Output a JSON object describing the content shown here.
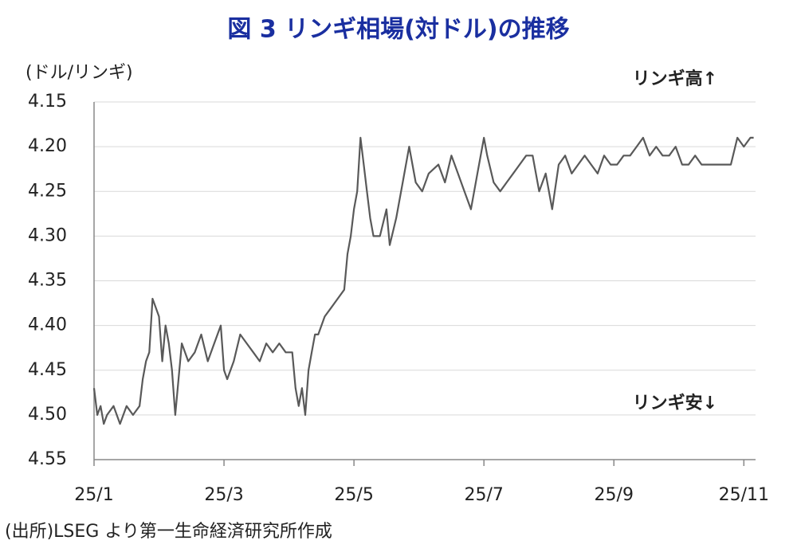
{
  "chart_data": {
    "type": "line",
    "title": "図 3  リンギ相場(対ドル)の推移",
    "y_label": "(ドル/リンギ)",
    "annotations": [
      "リンギ高↑",
      "リンギ安↓"
    ],
    "source": "(出所)LSEG より第一生命経済研究所作成",
    "xlim": [
      1,
      11.18
    ],
    "xticks": [
      {
        "value": 1,
        "label": "25/1"
      },
      {
        "value": 3,
        "label": "25/3"
      },
      {
        "value": 5,
        "label": "25/5"
      },
      {
        "value": 7,
        "label": "25/7"
      },
      {
        "value": 9,
        "label": "25/9"
      },
      {
        "value": 11,
        "label": "25/11"
      }
    ],
    "ylim": [
      4.55,
      4.15
    ],
    "yticks": [
      4.15,
      {
        "value": 4.2,
        "label": "4.20"
      },
      4.25,
      {
        "value": 4.3,
        "label": "4.30"
      },
      4.35,
      {
        "value": 4.4,
        "label": "4.40"
      },
      4.45,
      {
        "value": 4.5,
        "label": "4.50"
      },
      4.55
    ],
    "grid": true,
    "x": [
      1.0,
      1.05,
      1.1,
      1.15,
      1.2,
      1.3,
      1.4,
      1.5,
      1.6,
      1.7,
      1.75,
      1.8,
      1.85,
      1.9,
      1.95,
      2.0,
      2.05,
      2.1,
      2.15,
      2.2,
      2.25,
      2.3,
      2.35,
      2.45,
      2.55,
      2.65,
      2.75,
      2.85,
      2.95,
      3.0,
      3.05,
      3.15,
      3.25,
      3.35,
      3.45,
      3.55,
      3.65,
      3.75,
      3.85,
      3.95,
      4.05,
      4.1,
      4.15,
      4.2,
      4.25,
      4.3,
      4.35,
      4.4,
      4.45,
      4.55,
      4.65,
      4.75,
      4.85,
      4.9,
      4.95,
      5.0,
      5.05,
      5.1,
      5.15,
      5.2,
      5.25,
      5.3,
      5.4,
      5.5,
      5.55,
      5.65,
      5.75,
      5.85,
      5.95,
      6.05,
      6.15,
      6.3,
      6.4,
      6.5,
      6.6,
      6.7,
      6.8,
      6.9,
      7.0,
      7.05,
      7.15,
      7.25,
      7.35,
      7.45,
      7.55,
      7.65,
      7.75,
      7.85,
      7.95,
      8.05,
      8.15,
      8.25,
      8.35,
      8.45,
      8.55,
      8.65,
      8.75,
      8.85,
      8.95,
      9.05,
      9.15,
      9.25,
      9.35,
      9.45,
      9.55,
      9.65,
      9.75,
      9.85,
      9.95,
      10.05,
      10.15,
      10.25,
      10.35,
      10.5,
      10.65,
      10.8,
      10.9,
      11.0,
      11.1,
      11.15
    ],
    "series": [
      {
        "color": "#595959",
        "values": [
          4.47,
          4.5,
          4.49,
          4.51,
          4.5,
          4.49,
          4.51,
          4.49,
          4.5,
          4.49,
          4.46,
          4.44,
          4.43,
          4.37,
          4.38,
          4.39,
          4.44,
          4.4,
          4.42,
          4.45,
          4.5,
          4.46,
          4.42,
          4.44,
          4.43,
          4.41,
          4.44,
          4.42,
          4.4,
          4.45,
          4.46,
          4.44,
          4.41,
          4.42,
          4.43,
          4.44,
          4.42,
          4.43,
          4.42,
          4.43,
          4.43,
          4.47,
          4.49,
          4.47,
          4.5,
          4.45,
          4.43,
          4.41,
          4.41,
          4.39,
          4.38,
          4.37,
          4.36,
          4.32,
          4.3,
          4.27,
          4.25,
          4.19,
          4.22,
          4.25,
          4.28,
          4.3,
          4.3,
          4.27,
          4.31,
          4.28,
          4.24,
          4.2,
          4.24,
          4.25,
          4.23,
          4.22,
          4.24,
          4.21,
          4.23,
          4.25,
          4.27,
          4.23,
          4.19,
          4.21,
          4.24,
          4.25,
          4.24,
          4.23,
          4.22,
          4.21,
          4.21,
          4.25,
          4.23,
          4.27,
          4.22,
          4.21,
          4.23,
          4.22,
          4.21,
          4.22,
          4.23,
          4.21,
          4.22,
          4.22,
          4.21,
          4.21,
          4.2,
          4.19,
          4.21,
          4.2,
          4.21,
          4.21,
          4.2,
          4.22,
          4.22,
          4.21,
          4.22,
          4.22,
          4.22,
          4.22,
          4.19,
          4.2,
          4.19,
          4.19
        ]
      }
    ]
  }
}
